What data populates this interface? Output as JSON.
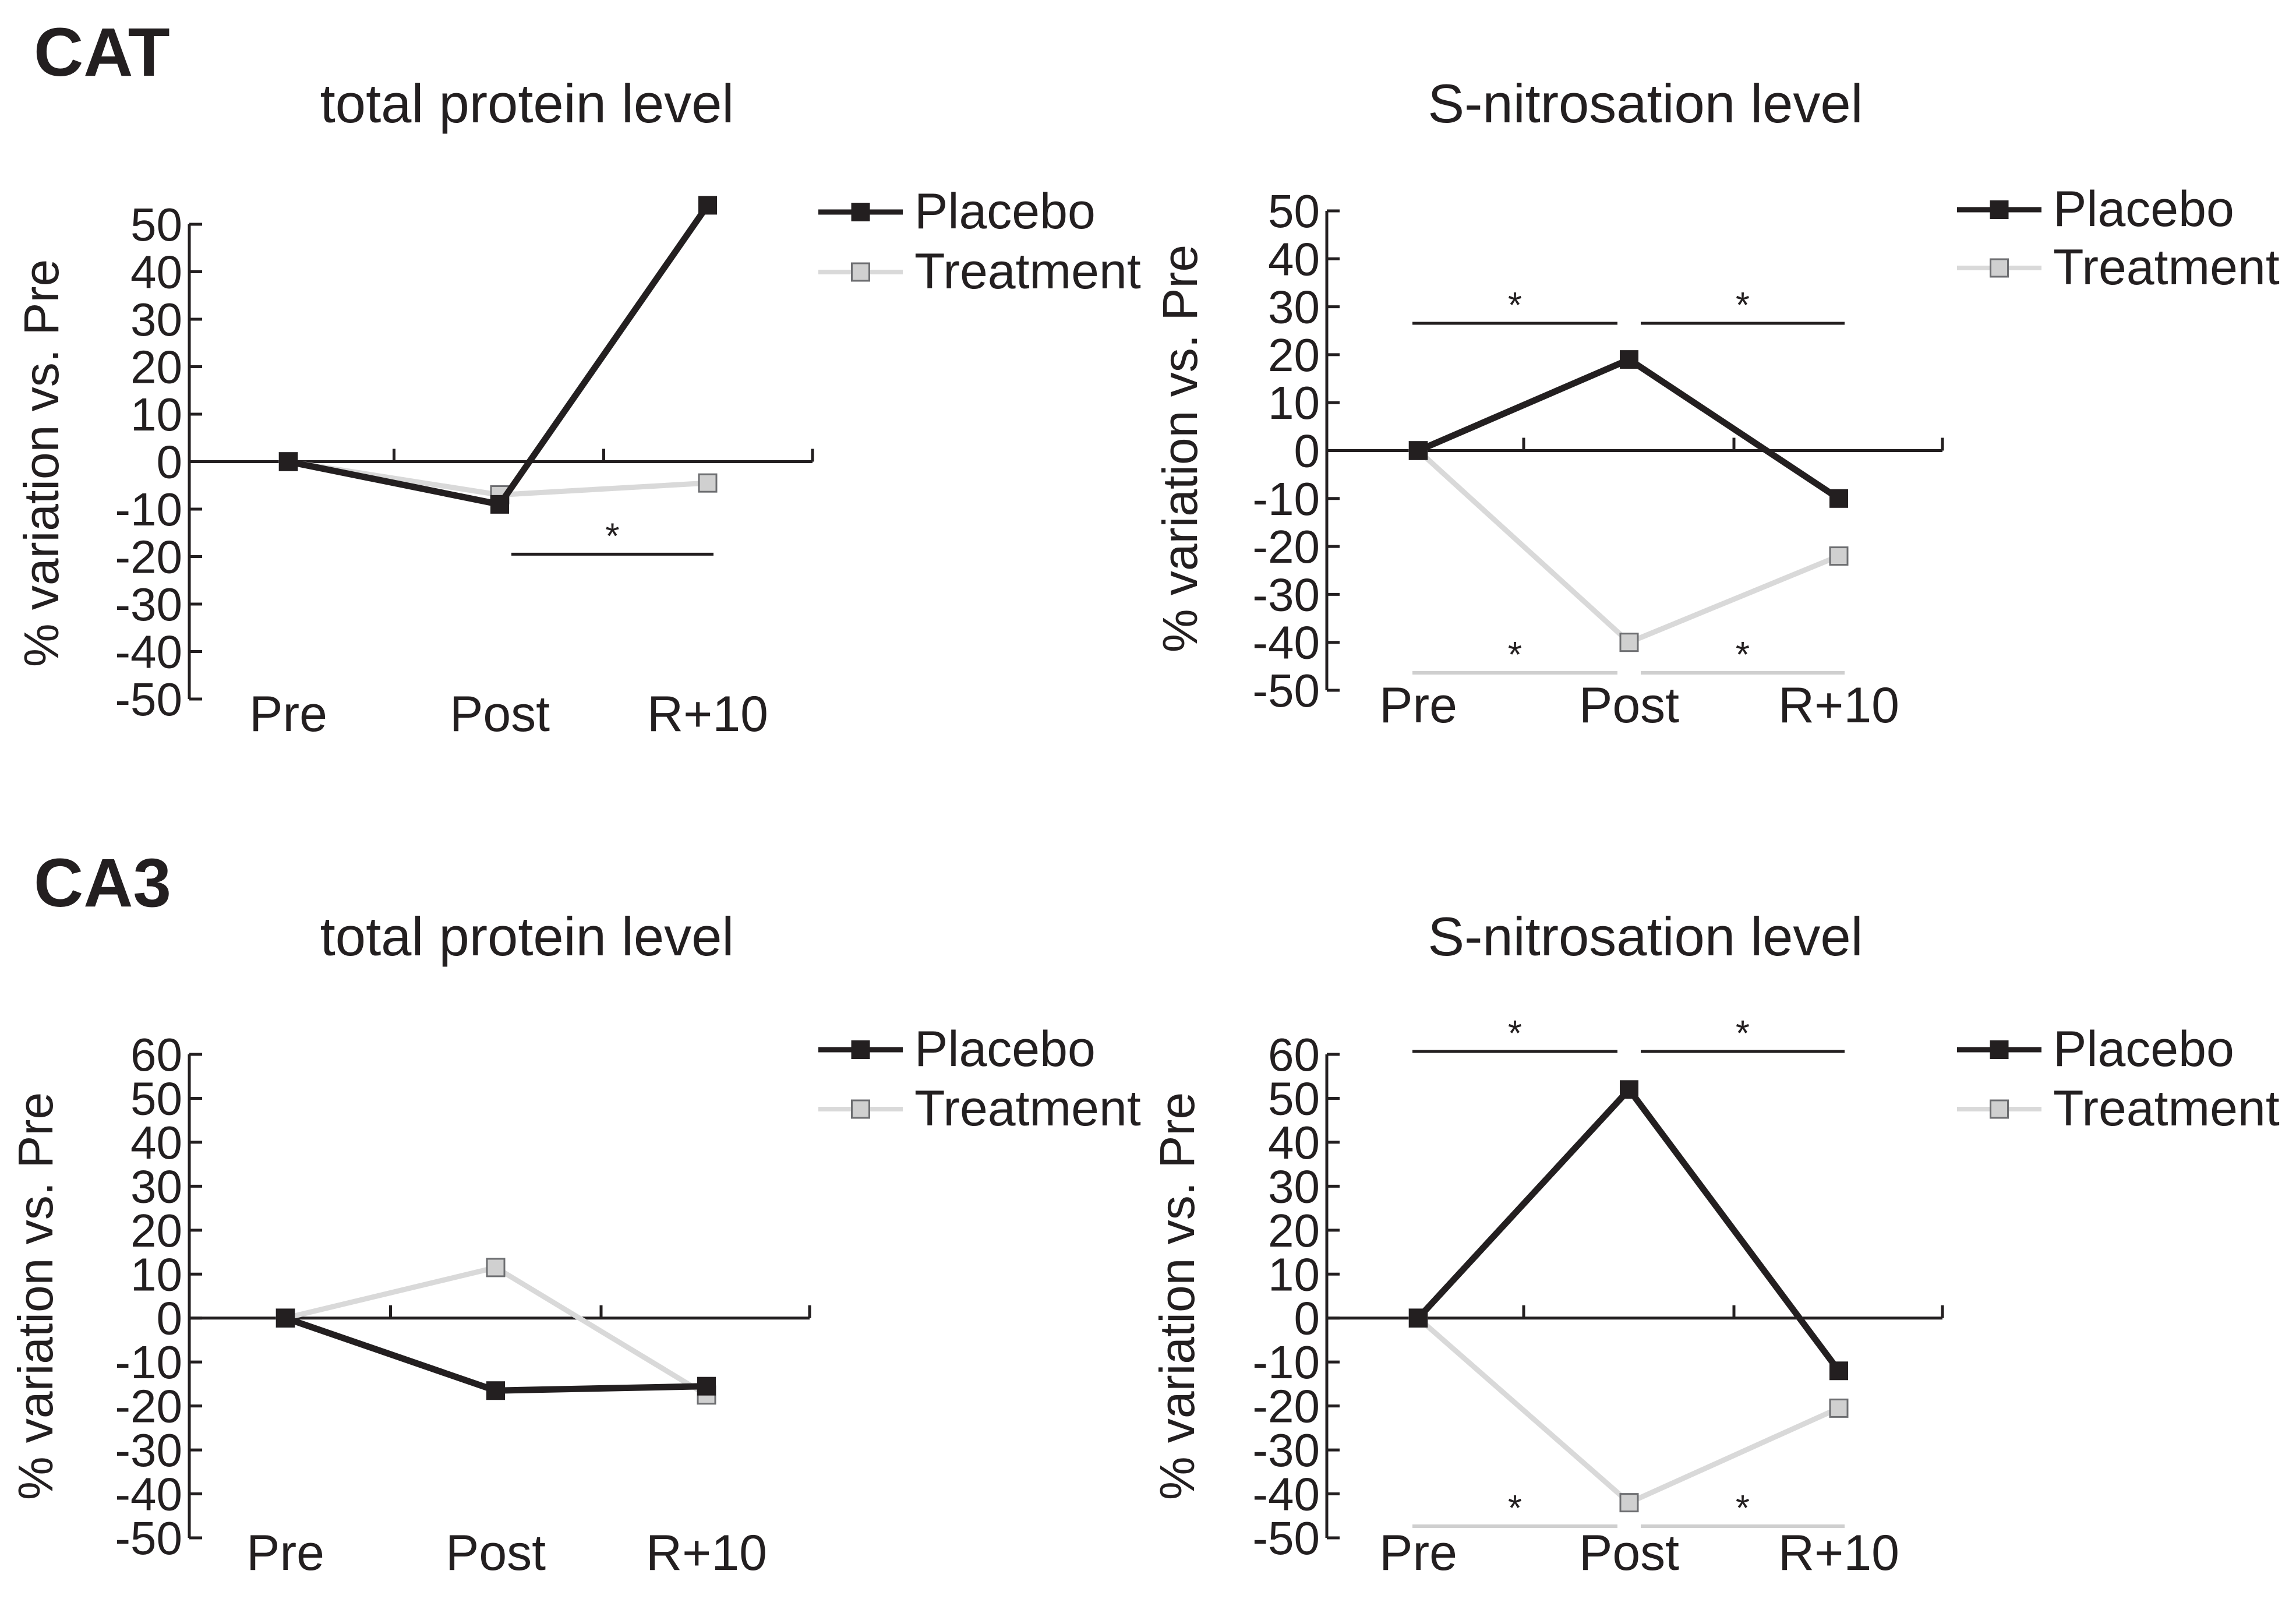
{
  "colors": {
    "placebo": "#231f20",
    "treatment": "#d9d9d9",
    "treatment_marker_fill": "#d0d0d0",
    "axis": "#231f20"
  },
  "sections": [
    {
      "id": "cat",
      "label": "CAT"
    },
    {
      "id": "ca3",
      "label": "CA3"
    }
  ],
  "chart_data": [
    {
      "section": "CAT",
      "type": "line",
      "title": "total protein level",
      "xlabel": "",
      "ylabel": "% variation vs. Pre",
      "categories": [
        "Pre",
        "Post",
        "R+10"
      ],
      "yticks": [
        "50",
        "40",
        "30",
        "20",
        "10",
        "0",
        "-10",
        "-20",
        "-30",
        "-40",
        "-50"
      ],
      "ylim": [
        -50,
        50
      ],
      "series": [
        {
          "name": "Placebo",
          "values": [
            0,
            -9,
            54
          ]
        },
        {
          "name": "Treatment",
          "values": [
            0,
            -7,
            -4.5
          ]
        }
      ],
      "legend": {
        "position": "top-right",
        "entries": [
          "Placebo",
          "Treatment"
        ]
      },
      "significance": [
        {
          "from": "Post",
          "to": "R+10",
          "series": "Placebo",
          "side": "below",
          "label": "*"
        }
      ]
    },
    {
      "section": "CAT",
      "type": "line",
      "title": "S-nitrosation level",
      "xlabel": "",
      "ylabel": "% variation vs. Pre",
      "categories": [
        "Pre",
        "Post",
        "R+10"
      ],
      "yticks": [
        "50",
        "40",
        "30",
        "20",
        "10",
        "0",
        "-10",
        "-20",
        "-30",
        "-40",
        "-50"
      ],
      "ylim": [
        -50,
        50
      ],
      "series": [
        {
          "name": "Placebo",
          "values": [
            0,
            19,
            -10
          ]
        },
        {
          "name": "Treatment",
          "values": [
            0,
            -40,
            -22
          ]
        }
      ],
      "legend": {
        "position": "top-right",
        "entries": [
          "Placebo",
          "Treatment"
        ]
      },
      "significance": [
        {
          "from": "Pre",
          "to": "Post",
          "series": "Placebo",
          "side": "above",
          "label": "*"
        },
        {
          "from": "Post",
          "to": "R+10",
          "series": "Placebo",
          "side": "above",
          "label": "*"
        },
        {
          "from": "Pre",
          "to": "Post",
          "series": "Treatment",
          "side": "below",
          "label": "*"
        },
        {
          "from": "Post",
          "to": "R+10",
          "series": "Treatment",
          "side": "below",
          "label": "*"
        }
      ]
    },
    {
      "section": "CA3",
      "type": "line",
      "title": "total protein level",
      "xlabel": "",
      "ylabel": "% variation vs. Pre",
      "categories": [
        "Pre",
        "Post",
        "R+10"
      ],
      "yticks": [
        "60",
        "50",
        "40",
        "30",
        "20",
        "10",
        "0",
        "-10",
        "-20",
        "-30",
        "-40",
        "-50"
      ],
      "ylim": [
        -50,
        60
      ],
      "series": [
        {
          "name": "Placebo",
          "values": [
            0,
            -16.5,
            -15.5
          ]
        },
        {
          "name": "Treatment",
          "values": [
            0,
            11.5,
            -17.5
          ]
        }
      ],
      "legend": {
        "position": "top-right",
        "entries": [
          "Placebo",
          "Treatment"
        ]
      },
      "significance": []
    },
    {
      "section": "CA3",
      "type": "line",
      "title": "S-nitrosation level",
      "xlabel": "",
      "ylabel": "% variation vs. Pre",
      "categories": [
        "Pre",
        "Post",
        "R+10"
      ],
      "yticks": [
        "60",
        "50",
        "40",
        "30",
        "20",
        "10",
        "0",
        "-10",
        "-20",
        "-30",
        "-40",
        "-50"
      ],
      "ylim": [
        -50,
        60
      ],
      "series": [
        {
          "name": "Placebo",
          "values": [
            0,
            52,
            -12
          ]
        },
        {
          "name": "Treatment",
          "values": [
            0,
            -42,
            -20.5
          ]
        }
      ],
      "legend": {
        "position": "top-right",
        "entries": [
          "Placebo",
          "Treatment"
        ]
      },
      "significance": [
        {
          "from": "Pre",
          "to": "Post",
          "series": "Placebo",
          "side": "above",
          "label": "*"
        },
        {
          "from": "Post",
          "to": "R+10",
          "series": "Placebo",
          "side": "above",
          "label": "*"
        },
        {
          "from": "Pre",
          "to": "Post",
          "series": "Treatment",
          "side": "below",
          "label": "*"
        },
        {
          "from": "Post",
          "to": "R+10",
          "series": "Treatment",
          "side": "below",
          "label": "*"
        }
      ]
    }
  ]
}
